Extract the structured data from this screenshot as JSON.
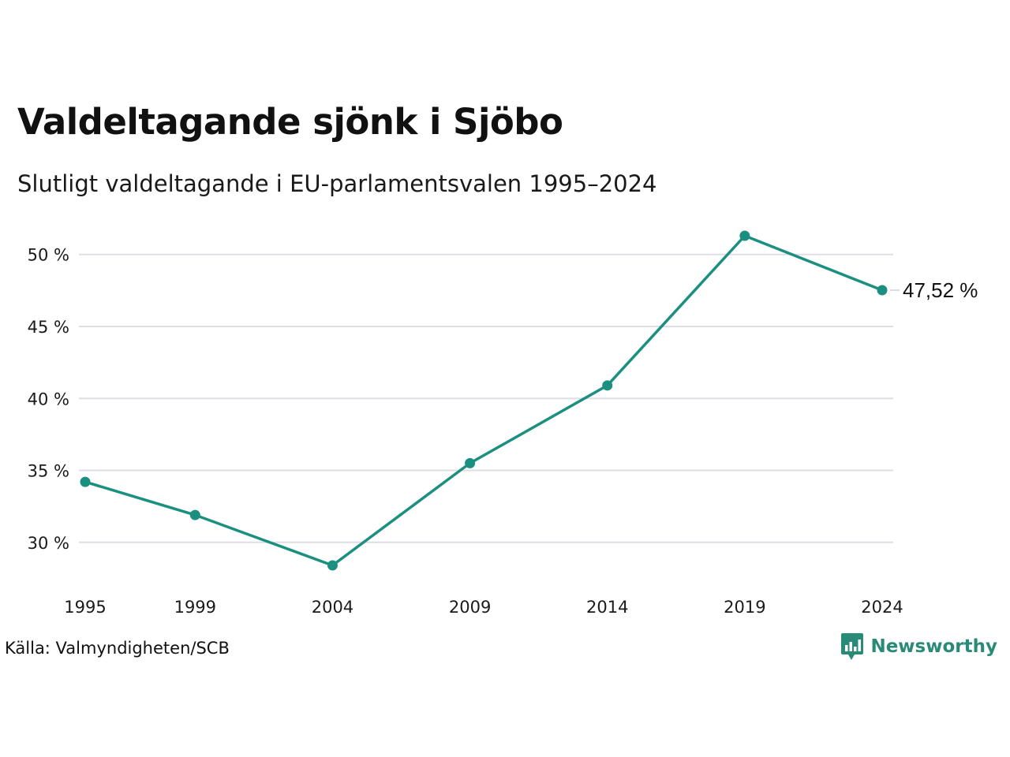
{
  "header": {
    "title": "Valdeltagande sjönk i Sjöbo",
    "subtitle": "Slutligt valdeltagande i EU-parlamentsvalen 1995–2024"
  },
  "footer": {
    "source": "Källa: Valmyndigheten/SCB",
    "brand": "Newsworthy"
  },
  "chart_data": {
    "type": "line",
    "x": [
      "1995",
      "1999",
      "2004",
      "2009",
      "2014",
      "2019",
      "2024"
    ],
    "series": [
      {
        "values": [
          34.2,
          31.9,
          28.4,
          35.5,
          40.9,
          51.3,
          47.52
        ]
      }
    ],
    "y_ticks": [
      30,
      35,
      40,
      45,
      50
    ],
    "y_tick_labels": [
      "30 %",
      "35 %",
      "40 %",
      "45 %",
      "50 %"
    ],
    "ylim": [
      28.4,
      51.3
    ],
    "last_value_label": "47,52 %",
    "grid": true,
    "line_color": "#1b8f80",
    "grid_color": "#dedee6"
  },
  "colors": {
    "accent": "#1b8f80",
    "brand": "#2a8a78"
  }
}
